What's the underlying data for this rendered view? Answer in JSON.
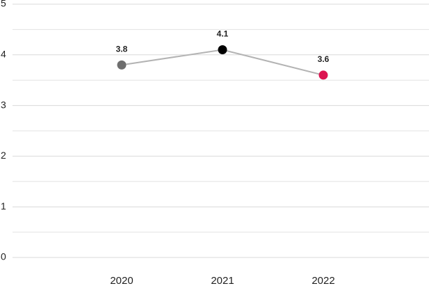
{
  "chart_data": {
    "type": "line",
    "categories": [
      "2020",
      "2021",
      "2022"
    ],
    "series": [
      {
        "values": [
          3.8,
          4.1,
          3.6
        ],
        "color": "#b3b3b3",
        "point_colors": [
          "#6e6e6e",
          "#000000",
          "#dc1450"
        ]
      }
    ],
    "ylim": [
      0,
      5
    ],
    "yticks": [
      0,
      1,
      2,
      3,
      4,
      5
    ],
    "minor_yticks": [
      0.5,
      1.5,
      2.5,
      3.5,
      4.5
    ],
    "grid": true,
    "data_labels": true
  }
}
